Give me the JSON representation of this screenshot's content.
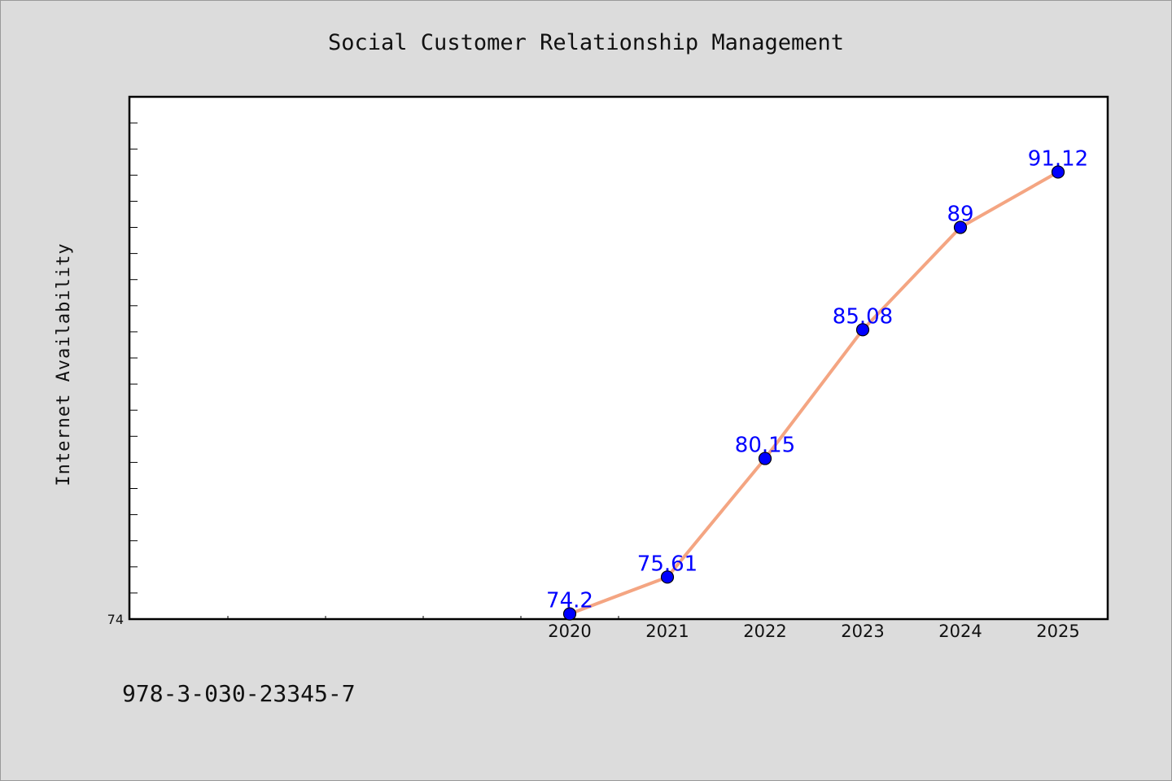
{
  "chart_data": {
    "type": "line",
    "title": "Social Customer Relationship Management",
    "xlabel": "",
    "ylabel": "Internet Availability",
    "x": [
      "2020",
      "2021",
      "2022",
      "2023",
      "2024",
      "2025"
    ],
    "series": [
      {
        "values": [
          74.2,
          75.61,
          80.15,
          85.08,
          89,
          91.12
        ]
      }
    ],
    "data_labels": [
      "74.2",
      "75.61",
      "80.15",
      "85.08",
      "89",
      "91.12"
    ],
    "y_tick_labels": [
      "74"
    ],
    "ylim": [
      74,
      94
    ],
    "grid": false,
    "legend": "none"
  },
  "footer": {
    "isbn": "978-3-030-23345-7"
  },
  "colors": {
    "background": "#dcdcdc",
    "plot_area": "#ffffff",
    "line": "#f4a582",
    "marker": "#0000ff",
    "data_label": "#0000ff"
  }
}
